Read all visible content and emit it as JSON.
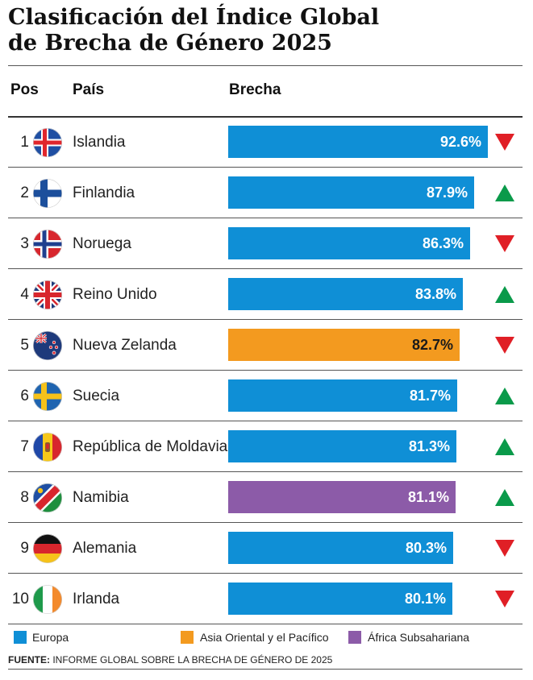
{
  "title_line1": "Clasificación del Índice Global",
  "title_line2": "de Brecha de Género 2025",
  "headers": {
    "pos": "Pos",
    "country": "País",
    "gap": "Brecha"
  },
  "colors": {
    "Europa": "#0f8fd6",
    "Asia Oriental y el Pacífico": "#f39a1f",
    "África Subsahariana": "#8c5ba8",
    "up": "#0a9a4a",
    "down": "#e01f26"
  },
  "chart_data": {
    "type": "bar",
    "orientation": "horizontal",
    "categories": [
      "Islandia",
      "Finlandia",
      "Noruega",
      "Reino Unido",
      "Nueva Zelanda",
      "Suecia",
      "República de Moldavia",
      "Namibia",
      "Alemania",
      "Irlanda"
    ],
    "positions": [
      "1",
      "2",
      "3",
      "4",
      "5",
      "6",
      "7",
      "8",
      "9",
      "10"
    ],
    "values": [
      92.6,
      87.9,
      86.3,
      83.8,
      82.7,
      81.7,
      81.3,
      81.1,
      80.3,
      80.1
    ],
    "value_labels": [
      "92.6%",
      "87.9%",
      "86.3%",
      "83.8%",
      "82.7%",
      "81.7%",
      "81.3%",
      "81.1%",
      "80.3%",
      "80.1%"
    ],
    "regions": [
      "Europa",
      "Europa",
      "Europa",
      "Europa",
      "Asia Oriental y el Pacífico",
      "Europa",
      "Europa",
      "África Subsahariana",
      "Europa",
      "Europa"
    ],
    "trend": [
      "down",
      "up",
      "down",
      "up",
      "down",
      "up",
      "up",
      "up",
      "down",
      "down"
    ],
    "flags": [
      "iceland-flag",
      "finland-flag",
      "norway-flag",
      "uk-flag",
      "new-zealand-flag",
      "sweden-flag",
      "moldova-flag",
      "namibia-flag",
      "germany-flag",
      "ireland-flag"
    ],
    "legend": [
      "Europa",
      "Asia Oriental y el Pacífico",
      "África Subsahariana"
    ],
    "legend_placement": "bottom"
  },
  "source_label": "FUENTE:",
  "source_text": " INFORME GLOBAL SOBRE LA BRECHA DE GÉNERO DE 2025"
}
